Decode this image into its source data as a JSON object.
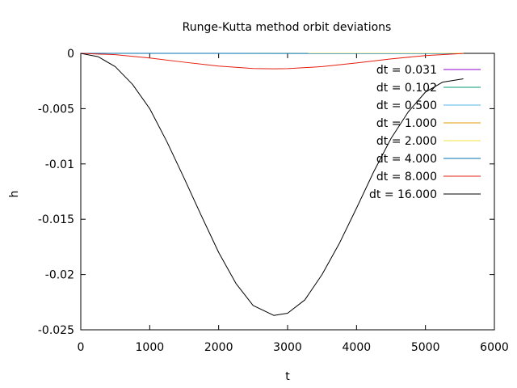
{
  "chart_data": {
    "type": "line",
    "title": "Runge-Kutta method orbit deviations",
    "xlabel": "t",
    "ylabel": "h",
    "xlim": [
      0,
      6000
    ],
    "ylim": [
      -0.025,
      0
    ],
    "x_ticks": [
      0,
      1000,
      2000,
      3000,
      4000,
      5000,
      6000
    ],
    "x_tick_labels": [
      "0",
      "1000",
      "2000",
      "3000",
      "4000",
      "5000",
      "6000"
    ],
    "y_ticks": [
      0,
      -0.005,
      -0.01,
      -0.015,
      -0.02,
      -0.025
    ],
    "y_tick_labels": [
      "0",
      "-0.005",
      "-0.01",
      "-0.015",
      "-0.02",
      "-0.025"
    ],
    "grid": false,
    "legend_position": "top-right",
    "series": [
      {
        "name": "dt = 0.031",
        "color": "#9400d3",
        "x": [
          0,
          5550
        ],
        "y": [
          0,
          0
        ]
      },
      {
        "name": "dt = 0.102",
        "color": "#009e73",
        "x": [
          0,
          5550
        ],
        "y": [
          0,
          0
        ]
      },
      {
        "name": "dt = 0.500",
        "color": "#56b4e9",
        "x": [
          0,
          5550
        ],
        "y": [
          0,
          0
        ]
      },
      {
        "name": "dt = 1.000",
        "color": "#e69f00",
        "x": [
          0,
          5550
        ],
        "y": [
          0,
          0
        ]
      },
      {
        "name": "dt = 2.000",
        "color": "#f0e442",
        "x": [
          0,
          5550
        ],
        "y": [
          0,
          0
        ]
      },
      {
        "name": "dt = 4.000",
        "color": "#0072b2",
        "x": [
          0,
          5550
        ],
        "y": [
          0,
          -1e-05
        ]
      },
      {
        "name": "dt = 8.000",
        "color": "#e51e10",
        "x": [
          0,
          500,
          1000,
          1500,
          2000,
          2500,
          2800,
          3000,
          3500,
          4000,
          4500,
          5000,
          5550
        ],
        "y": [
          0,
          -0.00012,
          -0.00042,
          -0.0008,
          -0.00115,
          -0.00137,
          -0.0014,
          -0.00138,
          -0.0012,
          -0.00087,
          -0.0005,
          -0.0002,
          -1e-05
        ]
      },
      {
        "name": "dt = 16.000",
        "color": "#000000",
        "x": [
          0,
          250,
          500,
          750,
          1000,
          1250,
          1500,
          1750,
          2000,
          2250,
          2500,
          2800,
          3000,
          3250,
          3500,
          3750,
          4000,
          4250,
          4500,
          4750,
          5000,
          5250,
          5550
        ],
        "y": [
          0,
          -0.0003,
          -0.0012,
          -0.0028,
          -0.005,
          -0.008,
          -0.0113,
          -0.0147,
          -0.018,
          -0.0208,
          -0.0228,
          -0.0237,
          -0.0235,
          -0.0223,
          -0.02,
          -0.0172,
          -0.014,
          -0.0107,
          -0.0077,
          -0.0053,
          -0.0035,
          -0.0026,
          -0.0023
        ]
      }
    ]
  }
}
